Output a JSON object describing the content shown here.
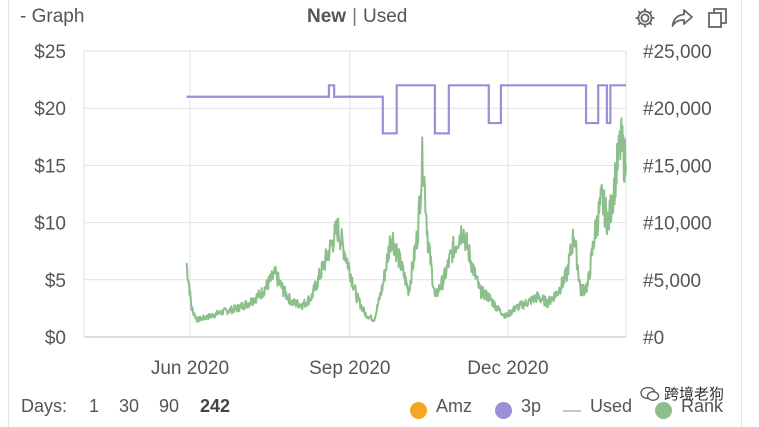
{
  "header": {
    "graph_label": "- Graph",
    "mode_new": "New",
    "mode_sep": "|",
    "mode_used": "Used"
  },
  "footer": {
    "days_label": "Days:",
    "day_options": [
      "1",
      "30",
      "90",
      "242"
    ],
    "active_day": "242"
  },
  "legend": [
    {
      "label": "Amz",
      "color": "#f5a623",
      "kind": "dot"
    },
    {
      "label": "3p",
      "color": "#9b8fd6",
      "kind": "dot"
    },
    {
      "label": "Used",
      "color": "#c8c8c8",
      "kind": "line"
    },
    {
      "label": "Rank",
      "color": "#8cbf8c",
      "kind": "dot"
    }
  ],
  "watermark": "跨境老狗",
  "colors": {
    "price_3p": "#9b8fd6",
    "rank": "#8cbf8c",
    "grid": "#e2e2e2",
    "text": "#555555"
  },
  "icons": [
    "gear-icon",
    "share-icon",
    "copy-icon"
  ],
  "chart_data": {
    "type": "line",
    "x_ticks": [
      "Jun 2020",
      "Sep 2020",
      "Dec 2020"
    ],
    "x_range": [
      "2020-04-01",
      "2021-02-07"
    ],
    "y_left": {
      "ticks": [
        "$0",
        "$5",
        "$10",
        "$15",
        "$20",
        "$25"
      ],
      "range": [
        0,
        25
      ]
    },
    "y_right": {
      "ticks": [
        "#0",
        "#5,000",
        "#10,000",
        "#15,000",
        "#20,000",
        "#25,000"
      ],
      "range": [
        0,
        25000
      ]
    },
    "grid": true,
    "legend_position": "bottom-right",
    "series": [
      {
        "name": "3p",
        "axis": "left",
        "step": true,
        "x": [
          "2020-05-30",
          "2020-08-20",
          "2020-08-23",
          "2020-09-20",
          "2020-09-28",
          "2020-10-20",
          "2020-10-28",
          "2020-11-20",
          "2020-11-27",
          "2021-01-15",
          "2021-01-22",
          "2021-01-27",
          "2021-01-29",
          "2021-02-07"
        ],
        "values": [
          21.0,
          22.0,
          21.0,
          17.8,
          22.0,
          17.8,
          22.0,
          18.7,
          22.0,
          18.7,
          22.0,
          18.7,
          22.0,
          22.0
        ]
      },
      {
        "name": "Rank",
        "axis": "right",
        "x": [
          "2020-05-30",
          "2020-06-02",
          "2020-06-05",
          "2020-06-12",
          "2020-06-20",
          "2020-06-28",
          "2020-07-05",
          "2020-07-12",
          "2020-07-20",
          "2020-07-25",
          "2020-07-30",
          "2020-08-05",
          "2020-08-10",
          "2020-08-15",
          "2020-08-20",
          "2020-08-25",
          "2020-08-30",
          "2020-09-05",
          "2020-09-10",
          "2020-09-15",
          "2020-09-20",
          "2020-09-25",
          "2020-09-30",
          "2020-10-05",
          "2020-10-10",
          "2020-10-13",
          "2020-10-16",
          "2020-10-20",
          "2020-10-25",
          "2020-10-30",
          "2020-11-05",
          "2020-11-10",
          "2020-11-15",
          "2020-11-20",
          "2020-11-25",
          "2020-11-30",
          "2020-12-05",
          "2020-12-12",
          "2020-12-18",
          "2020-12-24",
          "2020-12-30",
          "2021-01-04",
          "2021-01-08",
          "2021-01-12",
          "2021-01-16",
          "2021-01-20",
          "2021-01-24",
          "2021-01-28",
          "2021-02-01",
          "2021-02-04",
          "2021-02-07"
        ],
        "values": [
          6500,
          2500,
          1500,
          1800,
          2200,
          2500,
          3000,
          3800,
          5500,
          4000,
          3000,
          2800,
          3500,
          5500,
          7500,
          9500,
          7000,
          3500,
          2000,
          1500,
          4500,
          9000,
          6500,
          4000,
          9000,
          16000,
          8500,
          3500,
          5000,
          7500,
          9500,
          6500,
          4000,
          3500,
          2500,
          1800,
          2500,
          3000,
          3500,
          3000,
          4000,
          5500,
          9000,
          4000,
          4500,
          9000,
          12000,
          10000,
          14000,
          17000,
          15000
        ]
      }
    ]
  }
}
